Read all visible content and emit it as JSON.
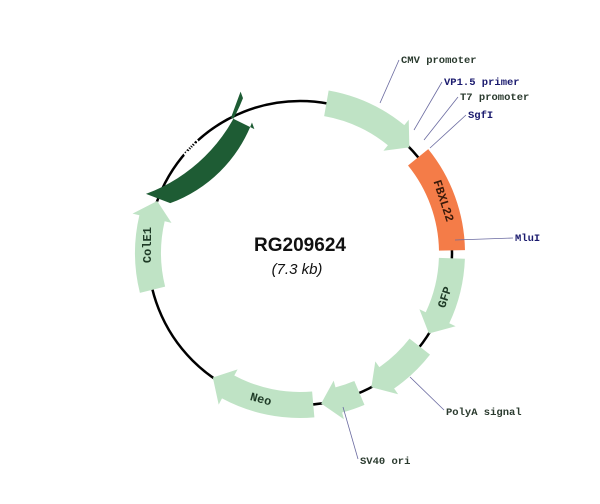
{
  "plasmid": {
    "name": "RG209624",
    "size": "(7.3 kb)"
  },
  "colors": {
    "backbone": "#000000",
    "light_feature": "#bfe3c5",
    "amp": "#1e5c34",
    "insert": "#f47c48",
    "callout_text": "#1a1a6e",
    "callout_text_dark": "#2b3b2f",
    "callout_line": "#6a6aa0"
  },
  "features": [
    {
      "name": "CMV promoter",
      "label": "",
      "direction": "clockwise",
      "color": "#bfe3c5"
    },
    {
      "name": "FBXL22",
      "label": "FBXL22",
      "direction": "none",
      "color": "#f47c48"
    },
    {
      "name": "GFP",
      "label": "GFP",
      "direction": "clockwise",
      "color": "#bfe3c5"
    },
    {
      "name": "PolyA signal",
      "label": "",
      "direction": "clockwise",
      "color": "#bfe3c5"
    },
    {
      "name": "SV40 ori",
      "label": "",
      "direction": "clockwise",
      "color": "#bfe3c5"
    },
    {
      "name": "Neo",
      "label": "Neo",
      "direction": "clockwise",
      "color": "#bfe3c5"
    },
    {
      "name": "ColE1",
      "label": "ColE1",
      "direction": "clockwise",
      "color": "#bfe3c5"
    },
    {
      "name": "Amp",
      "label": "Amp",
      "direction": "counterclockwise",
      "color": "#1e5c34"
    }
  ],
  "callouts": [
    {
      "text": "CMV promoter"
    },
    {
      "text": "VP1.5 primer"
    },
    {
      "text": "T7 promoter"
    },
    {
      "text": "SgfI"
    },
    {
      "text": "MluI"
    },
    {
      "text": "PolyA signal"
    },
    {
      "text": "SV40 ori"
    }
  ]
}
